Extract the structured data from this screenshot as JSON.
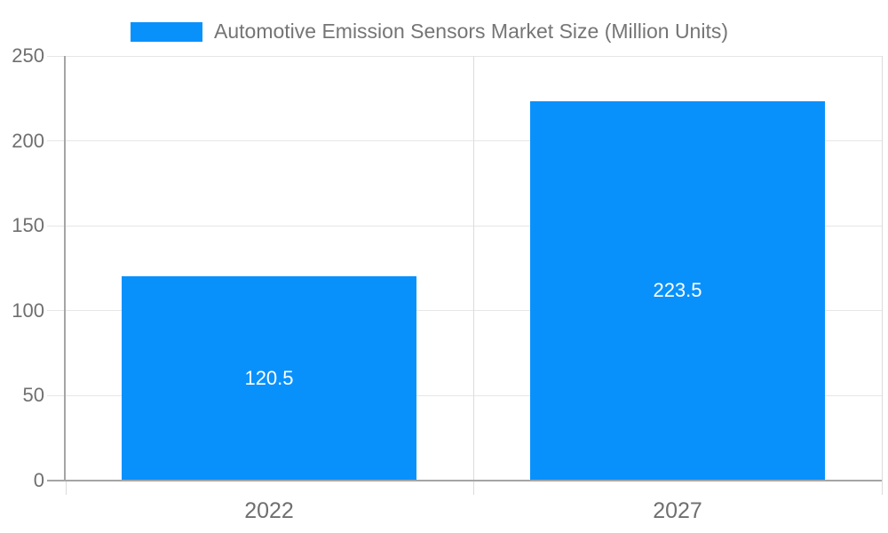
{
  "chart_data": {
    "type": "bar",
    "title": "Automotive Emission Sensors Market Size (Million Units)",
    "categories": [
      "2022",
      "2027"
    ],
    "series": [
      {
        "name": "Automotive Emission Sensors Market Size (Million Units)",
        "values": [
          120.5,
          223.5
        ]
      }
    ],
    "bar_labels": [
      "120.5",
      "223.5"
    ],
    "xlabel": "",
    "ylabel": "",
    "ylim": [
      0,
      250
    ],
    "yticks": [
      0,
      50,
      100,
      150,
      200,
      250
    ],
    "ytick_labels": [
      "0",
      "50",
      "100",
      "150",
      "200",
      "250"
    ],
    "grid": true,
    "legend_position": "top-center",
    "colors": {
      "bar": "#0991FB",
      "bar_label_text": "#FFFFFF",
      "axis_line": "#A5A5A5",
      "gridline": "#E6E6E6",
      "separator_line": "#DCDCDC",
      "tick_label": "#6F6F6F",
      "legend_text": "#757575",
      "background": "#FFFFFF"
    }
  }
}
